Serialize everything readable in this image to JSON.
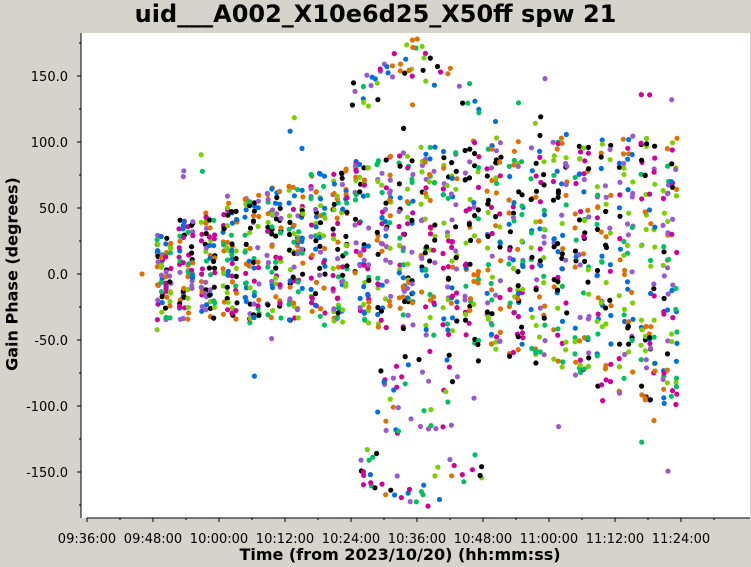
{
  "chart_data": {
    "type": "scatter",
    "title": "uid___A002_X10e6d25_X50ff spw 21",
    "xlabel": "Time (from 2023/10/20) (hh:mm:ss)",
    "ylabel": "Gain Phase (degrees)",
    "x_ticks": [
      "09:36:00",
      "09:48:00",
      "10:00:00",
      "10:12:00",
      "10:24:00",
      "10:36:00",
      "10:48:00",
      "11:00:00",
      "11:12:00",
      "11:24:00"
    ],
    "y_ticks": [
      "-150.0",
      "-100.0",
      "-50.0",
      "0.0",
      "50.0",
      "100.0",
      "150.0"
    ],
    "y_tick_values": [
      -150,
      -100,
      -50,
      0,
      50,
      100,
      150
    ],
    "xlim": [
      "09:36:00",
      "11:48:00"
    ],
    "ylim": [
      -182,
      180
    ],
    "grid": false,
    "colors": [
      "#000000",
      "#e07000",
      "#9b59d0",
      "#0070e0",
      "#d0009b",
      "#00c060",
      "#7ad000"
    ],
    "series_count_by_color": 7,
    "sample_times": [
      "09:46:00",
      "09:50:00",
      "09:54:00",
      "09:58:00",
      "10:02:00",
      "10:06:00",
      "10:10:00",
      "10:14:00",
      "10:18:00",
      "10:22:00",
      "10:26:00",
      "10:30:00",
      "10:34:00",
      "10:38:00",
      "10:42:00",
      "10:46:00",
      "10:50:00",
      "10:54:00",
      "10:58:00",
      "11:02:00",
      "11:06:00",
      "11:10:00",
      "11:14:00",
      "11:18:00",
      "11:22:00"
    ]
  }
}
